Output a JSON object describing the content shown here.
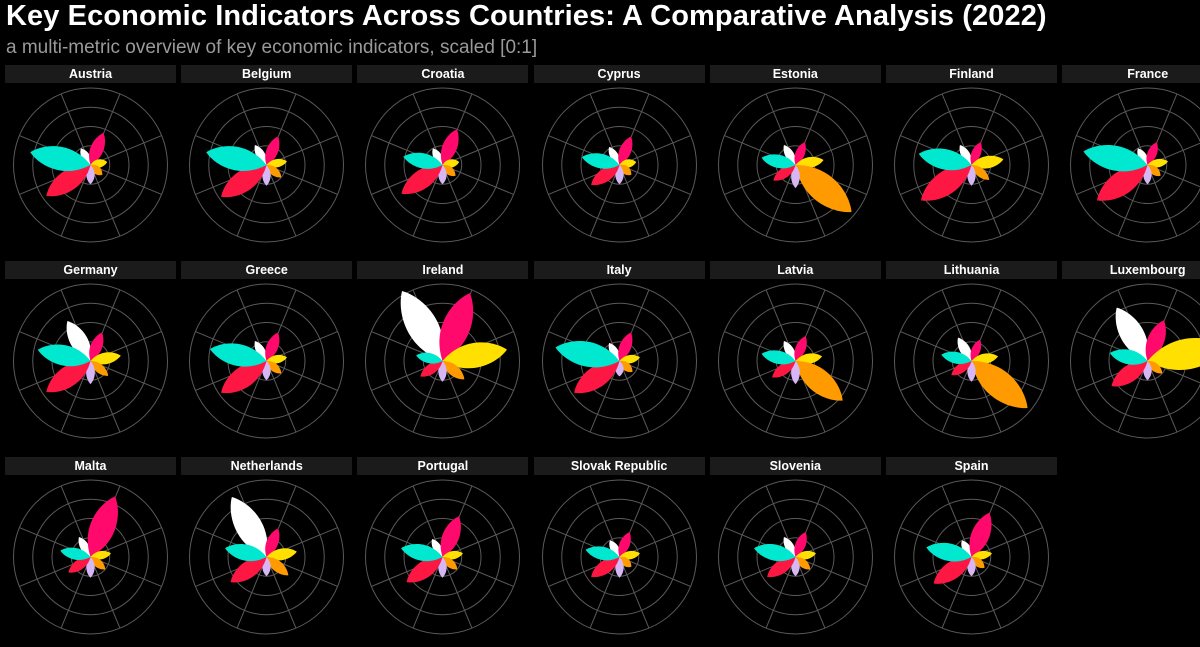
{
  "title": "Key Economic Indicators Across Countries: A Comparative Analysis (2022)",
  "subtitle": "a multi-metric overview of key economic indicators, scaled [0:1]",
  "colors": {
    "background": "#000000",
    "grid": "#5a5a5a",
    "strip": "#1b1b1b",
    "petals": [
      "#ffffff",
      "#ff0a6c",
      "#ffe000",
      "#ff9a00",
      "#d7b6f5",
      "#ff1744",
      "#00e8d0"
    ]
  },
  "chart_data": {
    "type": "radial-petal",
    "ylim": [
      0,
      1
    ],
    "grid": true,
    "panels": [
      {
        "country": "Austria",
        "values": [
          0.25,
          0.45,
          0.22,
          0.2,
          0.25,
          0.7,
          0.8
        ]
      },
      {
        "country": "Belgium",
        "values": [
          0.3,
          0.4,
          0.27,
          0.25,
          0.27,
          0.72,
          0.8
        ]
      },
      {
        "country": "Croatia",
        "values": [
          0.25,
          0.5,
          0.22,
          0.22,
          0.25,
          0.65,
          0.52
        ]
      },
      {
        "country": "Cyprus",
        "values": [
          0.27,
          0.4,
          0.22,
          0.2,
          0.25,
          0.45,
          0.5
        ]
      },
      {
        "country": "Estonia",
        "values": [
          0.3,
          0.32,
          0.37,
          0.95,
          0.3,
          0.35,
          0.45
        ]
      },
      {
        "country": "Finland",
        "values": [
          0.3,
          0.32,
          0.42,
          0.3,
          0.27,
          0.8,
          0.7
        ]
      },
      {
        "country": "France",
        "values": [
          0.25,
          0.32,
          0.27,
          0.22,
          0.25,
          0.8,
          0.85
        ]
      },
      {
        "country": "Germany",
        "values": [
          0.6,
          0.4,
          0.4,
          0.3,
          0.3,
          0.7,
          0.7
        ]
      },
      {
        "country": "Greece",
        "values": [
          0.3,
          0.4,
          0.27,
          0.25,
          0.25,
          0.72,
          0.75
        ]
      },
      {
        "country": "Ireland",
        "values": [
          1.05,
          0.95,
          0.85,
          0.37,
          0.27,
          0.35,
          0.35
        ]
      },
      {
        "country": "Italy",
        "values": [
          0.27,
          0.4,
          0.27,
          0.22,
          0.2,
          0.72,
          0.85
        ]
      },
      {
        "country": "Latvia",
        "values": [
          0.3,
          0.35,
          0.35,
          0.8,
          0.3,
          0.37,
          0.45
        ]
      },
      {
        "country": "Lithuania",
        "values": [
          0.35,
          0.3,
          0.35,
          0.95,
          0.27,
          0.32,
          0.4
        ]
      },
      {
        "country": "Luxembourg",
        "values": [
          0.8,
          0.57,
          1.05,
          0.25,
          0.25,
          0.57,
          0.5
        ]
      },
      {
        "country": "Malta",
        "values": [
          0.3,
          0.85,
          0.27,
          0.25,
          0.27,
          0.35,
          0.4
        ]
      },
      {
        "country": "Netherlands",
        "values": [
          0.9,
          0.4,
          0.4,
          0.37,
          0.25,
          0.57,
          0.55
        ]
      },
      {
        "country": "Portugal",
        "values": [
          0.27,
          0.57,
          0.27,
          0.25,
          0.27,
          0.57,
          0.55
        ]
      },
      {
        "country": "Slovak Republic",
        "values": [
          0.25,
          0.35,
          0.27,
          0.2,
          0.27,
          0.45,
          0.45
        ]
      },
      {
        "country": "Slovenia",
        "values": [
          0.3,
          0.35,
          0.27,
          0.25,
          0.25,
          0.45,
          0.55
        ]
      },
      {
        "country": "Spain",
        "values": [
          0.25,
          0.62,
          0.27,
          0.22,
          0.25,
          0.6,
          0.6
        ]
      }
    ]
  }
}
